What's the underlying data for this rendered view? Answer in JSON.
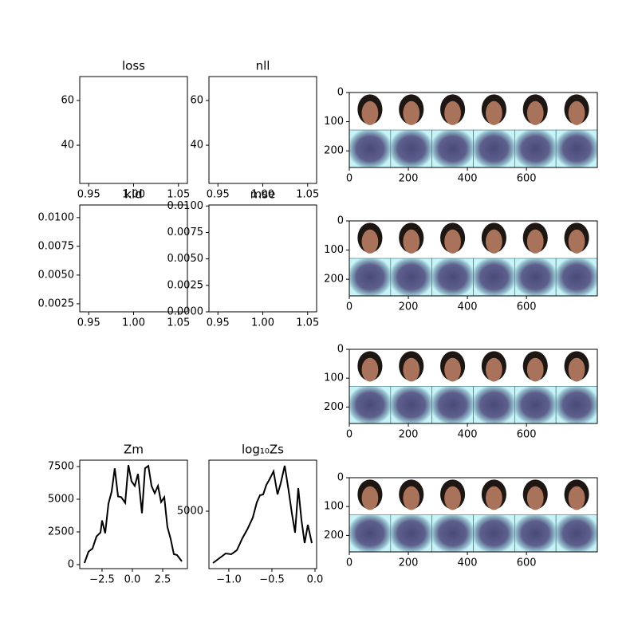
{
  "chart_data": [
    {
      "type": "line",
      "title": "loss",
      "xlim": [
        0.94,
        1.06
      ],
      "ylim": [
        22.9,
        70.7
      ],
      "xticks": [
        0.95,
        {
          "value": 1,
          "label": "1.00"
        },
        1.05
      ],
      "yticks": [
        40,
        60
      ]
    },
    {
      "type": "line",
      "title": "nll",
      "xlim": [
        0.94,
        1.06
      ],
      "ylim": [
        22.9,
        70.7
      ],
      "xticks": [
        0.95,
        {
          "value": 1,
          "label": "1.00"
        },
        1.05
      ],
      "yticks": [
        40,
        60
      ]
    },
    {
      "type": "line",
      "title": "kld",
      "xlim": [
        0.94,
        1.06
      ],
      "ylim": [
        0.0018,
        0.0111
      ],
      "xticks": [
        0.95,
        {
          "value": 1,
          "label": "1.00"
        },
        1.05
      ],
      "yticks": [
        0.0025,
        {
          "value": 0.005,
          "label": "0.0050"
        },
        0.0075,
        {
          "value": 0.01,
          "label": "0.0100"
        }
      ]
    },
    {
      "type": "line",
      "title": "mse",
      "xlim": [
        0.94,
        1.06
      ],
      "ylim": [
        0,
        0.0101
      ],
      "xticks": [
        0.95,
        {
          "value": 1,
          "label": "1.00"
        },
        1.05
      ],
      "yticks": [
        {
          "value": 0,
          "label": "0.0000"
        },
        0.0025,
        {
          "value": 0.005,
          "label": "0.0050"
        },
        0.0075,
        {
          "value": 0.01,
          "label": "0.0100"
        }
      ]
    },
    {
      "type": "line",
      "title": "Zm",
      "xlim": [
        -4.34,
        4.54
      ],
      "ylim": [
        -307,
        7990
      ],
      "xticks": [
        {
          "value": -2.5,
          "label": "−2.5"
        },
        {
          "value": 0,
          "label": "0.0"
        },
        2.5
      ],
      "yticks": [
        0,
        2500,
        5000,
        7500
      ],
      "color": "#000000",
      "x": [
        -3.95,
        -3.62,
        -3.29,
        -2.96,
        -2.63,
        -2.5,
        -2.24,
        -1.97,
        -1.71,
        -1.45,
        -1.18,
        -0.92,
        -0.59,
        -0.33,
        -0.07,
        0.2,
        0.46,
        0.79,
        1.05,
        1.32,
        1.58,
        1.84,
        2.11,
        2.37,
        2.63,
        2.89,
        3.16,
        3.42,
        3.68,
        4.08
      ],
      "values": [
        123,
        982,
        1228,
        2150,
        2456,
        3378,
        2395,
        4667,
        5588,
        7368,
        5219,
        5158,
        4728,
        7614,
        6386,
        6017,
        6939,
        3930,
        7368,
        7553,
        6017,
        5465,
        6017,
        4790,
        5158,
        2886,
        1965,
        798,
        737,
        246
      ]
    },
    {
      "type": "line",
      "title": "log₁₀Zs",
      "xlim": [
        -1.231,
        0.0185
      ],
      "ylim": [
        -455,
        9848
      ],
      "xticks": [
        {
          "value": -1,
          "label": "−1.0"
        },
        {
          "value": -0.5,
          "label": "−0.5"
        },
        {
          "value": 0,
          "label": "0.0"
        }
      ],
      "yticks": [
        5000
      ],
      "color": "#000000",
      "x": [
        -1.185,
        -1.111,
        -1.037,
        -0.972,
        -0.907,
        -0.843,
        -0.787,
        -0.722,
        -0.676,
        -0.639,
        -0.602,
        -0.565,
        -0.528,
        -0.481,
        -0.435,
        -0.398,
        -0.352,
        -0.306,
        -0.269,
        -0.231,
        -0.194,
        -0.157,
        -0.12,
        -0.083,
        -0.037
      ],
      "values": [
        76,
        530,
        985,
        909,
        1288,
        2424,
        3258,
        4394,
        5833,
        6515,
        6591,
        7500,
        8030,
        8788,
        6591,
        7652,
        9318,
        6970,
        4848,
        2955,
        7197,
        4167,
        1970,
        3712,
        1970
      ]
    },
    {
      "type": "image",
      "xlim": [
        0,
        840
      ],
      "ylim": [
        257,
        0
      ],
      "xticks": [
        0,
        200,
        400,
        600
      ],
      "yticks": [
        0,
        100,
        200
      ]
    },
    {
      "type": "image",
      "xlim": [
        0,
        840
      ],
      "ylim": [
        257,
        0
      ],
      "xticks": [
        0,
        200,
        400,
        600
      ],
      "yticks": [
        0,
        100,
        200
      ]
    },
    {
      "type": "image",
      "xlim": [
        0,
        840
      ],
      "ylim": [
        257,
        0
      ],
      "xticks": [
        0,
        200,
        400,
        600
      ],
      "yticks": [
        0,
        100,
        200
      ]
    },
    {
      "type": "image",
      "xlim": [
        0,
        840
      ],
      "ylim": [
        257,
        0
      ],
      "xticks": [
        0,
        200,
        400,
        600
      ],
      "yticks": [
        0,
        100,
        200
      ]
    }
  ]
}
